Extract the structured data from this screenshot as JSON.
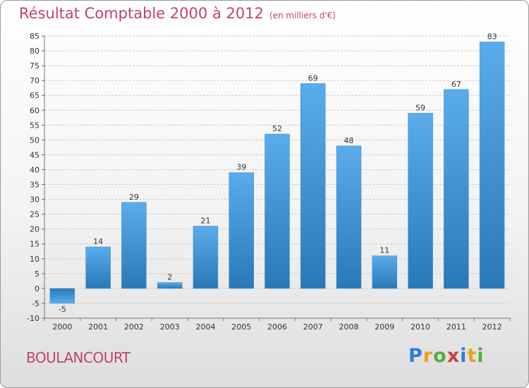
{
  "header": {
    "title": "Résultat Comptable 2000 à 2012",
    "unit": "(en milliers d'€)"
  },
  "footer": {
    "commune": "BOULANCOURT",
    "logo_text": "Proxiti"
  },
  "colors": {
    "title": "#c4426a",
    "bar_top": "#5aaceb",
    "bar_bottom": "#2a78b8",
    "grid": "#c9c9c9"
  },
  "chart_data": {
    "type": "bar",
    "title": "Résultat Comptable 2000 à 2012",
    "ylabel": "en milliers d'€",
    "xlabel": "",
    "categories": [
      "2000",
      "2001",
      "2002",
      "2003",
      "2004",
      "2005",
      "2006",
      "2007",
      "2008",
      "2009",
      "2010",
      "2011",
      "2012"
    ],
    "values": [
      -5,
      14,
      29,
      2,
      21,
      39,
      52,
      69,
      48,
      11,
      59,
      67,
      83
    ],
    "ylim": [
      -10,
      85
    ],
    "ytick_step": 5,
    "grid": true
  }
}
